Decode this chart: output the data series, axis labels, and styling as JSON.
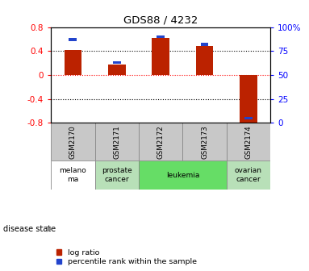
{
  "title": "GDS88 / 4232",
  "samples": [
    "GSM2170",
    "GSM2171",
    "GSM2172",
    "GSM2173",
    "GSM2174"
  ],
  "log_ratios": [
    0.42,
    0.18,
    0.62,
    0.48,
    -0.82
  ],
  "percentile_ranks": [
    87,
    63,
    90,
    82,
    5
  ],
  "disease_states": [
    {
      "label": "melano\nma",
      "color": "#ffffff",
      "span": [
        0,
        1
      ]
    },
    {
      "label": "prostate\ncancer",
      "color": "#b8e0b8",
      "span": [
        1,
        2
      ]
    },
    {
      "label": "leukemia",
      "color": "#66dd66",
      "span": [
        2,
        4
      ]
    },
    {
      "label": "ovarian\ncancer",
      "color": "#b8e0b8",
      "span": [
        4,
        5
      ]
    }
  ],
  "bar_color_red": "#bb2200",
  "bar_color_blue": "#2244cc",
  "ylim_log": [
    -0.8,
    0.8
  ],
  "ylim_pct": [
    0,
    100
  ],
  "yticks_log": [
    -0.8,
    -0.4,
    0.0,
    0.4,
    0.8
  ],
  "yticks_pct": [
    0,
    25,
    50,
    75,
    100
  ],
  "ytick_labels_log": [
    "-0.8",
    "-0.4",
    "0",
    "0.4",
    "0.8"
  ],
  "ytick_labels_pct": [
    "0",
    "25",
    "50",
    "75",
    "100%"
  ],
  "hlines_black": [
    -0.4,
    0.4
  ],
  "hline_red": 0.0,
  "legend_items": [
    "log ratio",
    "percentile rank within the sample"
  ],
  "disease_state_label": "disease state",
  "bar_width": 0.4,
  "blue_bar_width": 0.18,
  "sample_bg_color": "#c8c8c8"
}
